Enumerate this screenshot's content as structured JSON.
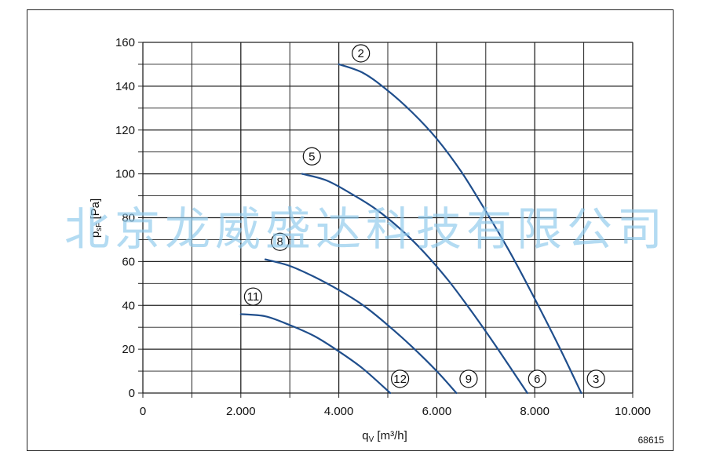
{
  "reference_code": "68615",
  "watermark": "北京龙威盛达科技有限公司",
  "colors": {
    "curve": "#1f4e8c",
    "grid": "#222222",
    "watermark": "#8cc8ec"
  },
  "chart_data": {
    "type": "line",
    "xlabel": "q_V [m³/h]",
    "ylabel": "p_sF [Pa]",
    "xlim": [
      0,
      10000
    ],
    "ylim": [
      0,
      160
    ],
    "x_ticks": [
      {
        "value": 0,
        "label": "0"
      },
      {
        "value": 2000,
        "label": "2.000"
      },
      {
        "value": 4000,
        "label": "4.000"
      },
      {
        "value": 6000,
        "label": "6.000"
      },
      {
        "value": 8000,
        "label": "8.000"
      },
      {
        "value": 10000,
        "label": "10.000"
      }
    ],
    "y_ticks": [
      {
        "value": 0,
        "label": "0"
      },
      {
        "value": 20,
        "label": "20"
      },
      {
        "value": 40,
        "label": "40"
      },
      {
        "value": 60,
        "label": "60"
      },
      {
        "value": 80,
        "label": "80"
      },
      {
        "value": 100,
        "label": "100"
      },
      {
        "value": 120,
        "label": "120"
      },
      {
        "value": 140,
        "label": "140"
      },
      {
        "value": 160,
        "label": "160"
      }
    ],
    "grid": true,
    "series": [
      {
        "x": [
          4000,
          4500,
          5000,
          5500,
          6000,
          6500,
          7000,
          7500,
          8000,
          8500,
          8950
        ],
        "y": [
          150,
          146,
          138,
          128,
          116,
          101,
          83,
          64,
          43,
          21,
          0
        ]
      },
      {
        "x": [
          3250,
          3750,
          4250,
          4750,
          5250,
          5750,
          6250,
          6750,
          7250,
          7850
        ],
        "y": [
          100,
          97,
          91,
          84,
          75,
          64,
          51,
          36,
          20,
          0
        ]
      },
      {
        "x": [
          2500,
          3000,
          3500,
          4000,
          4500,
          5000,
          5500,
          6000,
          6400
        ],
        "y": [
          61,
          58,
          53,
          47,
          40,
          31,
          21,
          10,
          0
        ]
      },
      {
        "x": [
          2000,
          2500,
          3000,
          3500,
          4000,
          4500,
          5050
        ],
        "y": [
          36,
          35,
          31,
          26,
          19,
          11,
          0
        ]
      }
    ],
    "annotations": [
      {
        "text": "2",
        "x": 4450,
        "y": 155
      },
      {
        "text": "5",
        "x": 3450,
        "y": 108
      },
      {
        "text": "8",
        "x": 2800,
        "y": 69
      },
      {
        "text": "11",
        "x": 2250,
        "y": 44
      },
      {
        "text": "12",
        "x": 5250,
        "y": 6.5
      },
      {
        "text": "9",
        "x": 6650,
        "y": 6.5
      },
      {
        "text": "6",
        "x": 8050,
        "y": 6.5
      },
      {
        "text": "3",
        "x": 9250,
        "y": 6.5
      }
    ]
  }
}
